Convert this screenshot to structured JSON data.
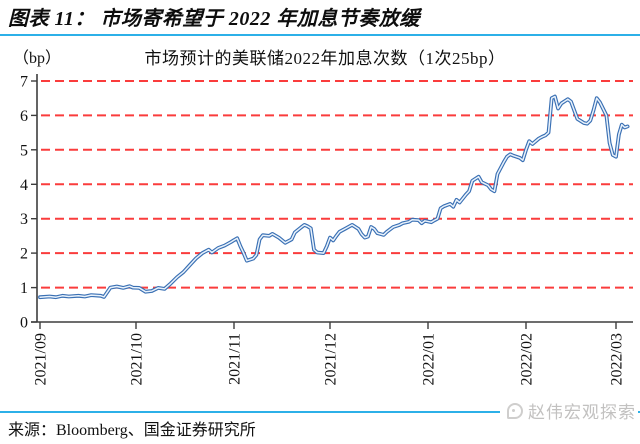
{
  "header": {
    "title": "图表 11：  市场寄希望于 2022 年加息节奏放缓"
  },
  "chart": {
    "unit_label": "（bp）",
    "title": "市场预计的美联储2022年加息次数（1次25bp）"
  },
  "footer": {
    "source": "来源：Bloomberg、国金证券研究所",
    "watermark": "赵伟宏观探索"
  },
  "colors": {
    "accent_rule": "#2cb0e8",
    "grid": "#fa3c3c",
    "axis": "#3d3d3d",
    "tick_text": "#111111",
    "series_outer": "#3a70b4",
    "series_inner": "#e9f2fb",
    "watermark": "#c2c1c0"
  },
  "chart_data": {
    "type": "line",
    "title": "市场预计的美联储2022年加息次数（1次25bp）",
    "xlabel": "",
    "ylabel": "（bp）",
    "ylim": [
      0,
      7
    ],
    "y_ticks": [
      0,
      1,
      2,
      3,
      4,
      5,
      6,
      7
    ],
    "x_tick_labels": [
      "2021/09",
      "2021/10",
      "2021/11",
      "2021/12",
      "2022/01",
      "2022/02",
      "2022/03"
    ],
    "grid": {
      "horizontal": true,
      "style": "dashed",
      "color": "#fa3c3c",
      "at_values": [
        1,
        2,
        3,
        4,
        5,
        6,
        7
      ]
    },
    "legend": "none",
    "series": [
      {
        "name": "市场预计的美联储2022年加息次数",
        "points": [
          [
            "2021-09-01",
            0.72
          ],
          [
            "2021-09-04",
            0.74
          ],
          [
            "2021-09-06",
            0.72
          ],
          [
            "2021-09-08",
            0.76
          ],
          [
            "2021-09-10",
            0.74
          ],
          [
            "2021-09-13",
            0.76
          ],
          [
            "2021-09-15",
            0.74
          ],
          [
            "2021-09-17",
            0.78
          ],
          [
            "2021-09-20",
            0.76
          ],
          [
            "2021-09-21",
            0.73
          ],
          [
            "2021-09-23",
            1.0
          ],
          [
            "2021-09-25",
            1.03
          ],
          [
            "2021-09-27",
            0.99
          ],
          [
            "2021-09-29",
            1.04
          ],
          [
            "2021-09-30",
            1.0
          ],
          [
            "2021-10-02",
            0.99
          ],
          [
            "2021-10-04",
            0.88
          ],
          [
            "2021-10-06",
            0.9
          ],
          [
            "2021-10-08",
            0.99
          ],
          [
            "2021-10-10",
            0.96
          ],
          [
            "2021-10-12",
            1.12
          ],
          [
            "2021-10-14",
            1.3
          ],
          [
            "2021-10-16",
            1.45
          ],
          [
            "2021-10-18",
            1.65
          ],
          [
            "2021-10-20",
            1.85
          ],
          [
            "2021-10-22",
            2.0
          ],
          [
            "2021-10-24",
            2.1
          ],
          [
            "2021-10-25",
            2.02
          ],
          [
            "2021-10-27",
            2.15
          ],
          [
            "2021-10-29",
            2.22
          ],
          [
            "2021-10-31",
            2.32
          ],
          [
            "2021-11-01",
            2.38
          ],
          [
            "2021-11-02",
            2.43
          ],
          [
            "2021-11-03",
            2.2
          ],
          [
            "2021-11-04",
            2.0
          ],
          [
            "2021-11-05",
            1.78
          ],
          [
            "2021-11-07",
            1.84
          ],
          [
            "2021-11-08",
            1.95
          ],
          [
            "2021-11-09",
            2.4
          ],
          [
            "2021-11-10",
            2.52
          ],
          [
            "2021-11-12",
            2.5
          ],
          [
            "2021-11-13",
            2.56
          ],
          [
            "2021-11-15",
            2.45
          ],
          [
            "2021-11-17",
            2.3
          ],
          [
            "2021-11-19",
            2.4
          ],
          [
            "2021-11-20",
            2.6
          ],
          [
            "2021-11-22",
            2.75
          ],
          [
            "2021-11-23",
            2.82
          ],
          [
            "2021-11-24",
            2.78
          ],
          [
            "2021-11-25",
            2.72
          ],
          [
            "2021-11-26",
            2.1
          ],
          [
            "2021-11-27",
            2.02
          ],
          [
            "2021-11-29",
            2.0
          ],
          [
            "2021-11-30",
            2.2
          ],
          [
            "2021-12-01",
            2.45
          ],
          [
            "2021-12-02",
            2.37
          ],
          [
            "2021-12-03",
            2.5
          ],
          [
            "2021-12-04",
            2.62
          ],
          [
            "2021-12-06",
            2.72
          ],
          [
            "2021-12-08",
            2.82
          ],
          [
            "2021-12-10",
            2.7
          ],
          [
            "2021-12-11",
            2.55
          ],
          [
            "2021-12-12",
            2.45
          ],
          [
            "2021-12-13",
            2.48
          ],
          [
            "2021-12-14",
            2.76
          ],
          [
            "2021-12-15",
            2.7
          ],
          [
            "2021-12-16",
            2.58
          ],
          [
            "2021-12-18",
            2.53
          ],
          [
            "2021-12-19",
            2.62
          ],
          [
            "2021-12-21",
            2.76
          ],
          [
            "2021-12-23",
            2.82
          ],
          [
            "2021-12-24",
            2.87
          ],
          [
            "2021-12-26",
            2.91
          ],
          [
            "2021-12-27",
            2.97
          ],
          [
            "2021-12-29",
            2.96
          ],
          [
            "2021-12-30",
            2.87
          ],
          [
            "2021-12-31",
            2.94
          ],
          [
            "2022-01-02",
            2.9
          ],
          [
            "2022-01-03",
            2.95
          ],
          [
            "2022-01-04",
            3.0
          ],
          [
            "2022-01-05",
            3.3
          ],
          [
            "2022-01-06",
            3.36
          ],
          [
            "2022-01-08",
            3.43
          ],
          [
            "2022-01-09",
            3.35
          ],
          [
            "2022-01-10",
            3.55
          ],
          [
            "2022-01-11",
            3.47
          ],
          [
            "2022-01-13",
            3.7
          ],
          [
            "2022-01-14",
            3.8
          ],
          [
            "2022-01-15",
            4.1
          ],
          [
            "2022-01-17",
            4.22
          ],
          [
            "2022-01-18",
            4.06
          ],
          [
            "2022-01-20",
            3.97
          ],
          [
            "2022-01-21",
            3.85
          ],
          [
            "2022-01-22",
            3.8
          ],
          [
            "2022-01-23",
            4.3
          ],
          [
            "2022-01-25",
            4.65
          ],
          [
            "2022-01-26",
            4.8
          ],
          [
            "2022-01-27",
            4.87
          ],
          [
            "2022-01-28",
            4.83
          ],
          [
            "2022-01-30",
            4.77
          ],
          [
            "2022-01-31",
            4.7
          ],
          [
            "2022-02-01",
            5.0
          ],
          [
            "2022-02-02",
            5.25
          ],
          [
            "2022-02-03",
            5.17
          ],
          [
            "2022-02-05",
            5.33
          ],
          [
            "2022-02-06",
            5.38
          ],
          [
            "2022-02-07",
            5.42
          ],
          [
            "2022-02-08",
            5.5
          ],
          [
            "2022-02-09",
            6.5
          ],
          [
            "2022-02-10",
            6.55
          ],
          [
            "2022-02-11",
            6.2
          ],
          [
            "2022-02-12",
            6.35
          ],
          [
            "2022-02-14",
            6.47
          ],
          [
            "2022-02-15",
            6.4
          ],
          [
            "2022-02-16",
            6.15
          ],
          [
            "2022-02-17",
            5.9
          ],
          [
            "2022-02-19",
            5.78
          ],
          [
            "2022-02-20",
            5.76
          ],
          [
            "2022-02-21",
            5.85
          ],
          [
            "2022-02-22",
            6.15
          ],
          [
            "2022-02-23",
            6.5
          ],
          [
            "2022-02-24",
            6.38
          ],
          [
            "2022-02-26",
            6.0
          ],
          [
            "2022-02-27",
            5.2
          ],
          [
            "2022-02-28",
            4.85
          ],
          [
            "2022-03-01",
            4.8
          ],
          [
            "2022-03-02",
            5.45
          ],
          [
            "2022-03-03",
            5.73
          ],
          [
            "2022-03-04",
            5.65
          ],
          [
            "2022-03-05",
            5.68
          ]
        ]
      }
    ]
  }
}
